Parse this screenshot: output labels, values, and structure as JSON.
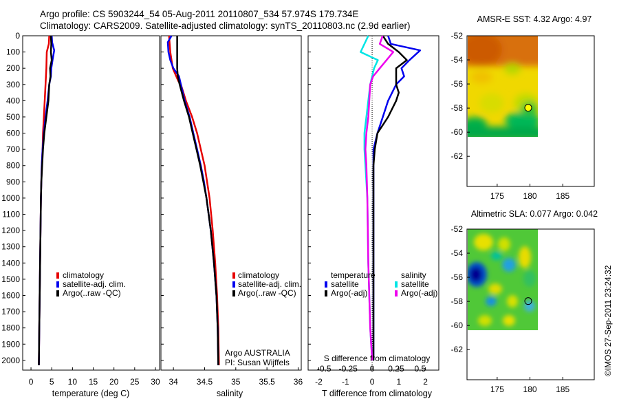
{
  "header": {
    "line1": "Argo profile: CS 5903244_54 05-Aug-2011 20110807_534 57.974S 179.734E",
    "line2": "Climatology: CARS2009. Satellite-adjusted climatology: synTS_20110803.nc (2.9d earlier)"
  },
  "watermark": "©IMOS 27-Sep-2011 23:24:32",
  "colors": {
    "climatology": "#e60000",
    "satellite": "#0000ee",
    "argo": "#000000",
    "sal_satellite": "#00e5e5",
    "sal_argo": "#ee00ee",
    "marker": "#ffff00"
  },
  "depth_axis": {
    "ticks": [
      0,
      100,
      200,
      300,
      400,
      500,
      600,
      700,
      800,
      900,
      1000,
      1100,
      1200,
      1300,
      1400,
      1500,
      1600,
      1700,
      1800,
      1900,
      2000
    ],
    "range": [
      0,
      2060
    ]
  },
  "chart_data": [
    {
      "type": "line",
      "id": "temperature",
      "xlabel": "temperature (deg C)",
      "xlim": [
        -2,
        31
      ],
      "xticks": [
        0,
        5,
        10,
        15,
        20,
        25,
        30
      ],
      "y_axis": "depth",
      "legend": [
        "climatology",
        "satellite-adj. clim.",
        "Argo(..raw -QC)"
      ],
      "series": [
        {
          "name": "climatology",
          "color": "#e60000",
          "points": [
            [
              4.4,
              0
            ],
            [
              4.3,
              50
            ],
            [
              3.8,
              100
            ],
            [
              3.7,
              200
            ],
            [
              3.5,
              300
            ],
            [
              3.3,
              400
            ],
            [
              3.1,
              500
            ],
            [
              2.9,
              600
            ],
            [
              2.8,
              700
            ],
            [
              2.6,
              800
            ],
            [
              2.5,
              900
            ],
            [
              2.4,
              1000
            ],
            [
              2.3,
              1200
            ],
            [
              2.2,
              1400
            ],
            [
              2.1,
              1600
            ],
            [
              2.0,
              1800
            ],
            [
              1.9,
              2030
            ]
          ]
        },
        {
          "name": "satellite-adj. clim.",
          "color": "#0000ee",
          "points": [
            [
              5.0,
              0
            ],
            [
              5.1,
              40
            ],
            [
              5.6,
              90
            ],
            [
              5.2,
              150
            ],
            [
              4.9,
              200
            ],
            [
              4.8,
              250
            ],
            [
              4.4,
              300
            ],
            [
              4.0,
              400
            ],
            [
              3.5,
              500
            ],
            [
              3.1,
              600
            ],
            [
              2.8,
              700
            ],
            [
              2.6,
              800
            ],
            [
              2.5,
              900
            ],
            [
              2.4,
              1000
            ],
            [
              2.3,
              1200
            ],
            [
              2.2,
              1400
            ],
            [
              2.1,
              1600
            ],
            [
              2.0,
              1800
            ],
            [
              1.9,
              2030
            ]
          ]
        },
        {
          "name": "Argo(..raw -QC)",
          "color": "#000000",
          "points": [
            [
              4.8,
              0
            ],
            [
              4.9,
              50
            ],
            [
              4.8,
              100
            ],
            [
              5.0,
              150
            ],
            [
              4.6,
              200
            ],
            [
              4.7,
              250
            ],
            [
              4.4,
              300
            ],
            [
              4.3,
              350
            ],
            [
              4.2,
              400
            ],
            [
              3.7,
              500
            ],
            [
              3.2,
              600
            ],
            [
              2.9,
              700
            ],
            [
              2.7,
              800
            ],
            [
              2.5,
              900
            ],
            [
              2.4,
              1000
            ],
            [
              2.3,
              1200
            ],
            [
              2.2,
              1400
            ],
            [
              2.1,
              1600
            ],
            [
              2.0,
              1800
            ],
            [
              1.9,
              2030
            ]
          ]
        }
      ]
    },
    {
      "type": "line",
      "id": "salinity",
      "xlabel": "salinity",
      "xlim": [
        33.8,
        36.05
      ],
      "xticks": [
        34,
        34.5,
        35,
        35.5,
        36
      ],
      "y_axis": "depth",
      "legend": [
        "climatology",
        "satellite-adj. clim.",
        "Argo(..raw -QC)"
      ],
      "annotation": [
        "Argo AUSTRALIA",
        "PI: Susan Wijffels"
      ],
      "series": [
        {
          "name": "climatology",
          "color": "#e60000",
          "points": [
            [
              33.93,
              0
            ],
            [
              33.94,
              50
            ],
            [
              33.95,
              100
            ],
            [
              33.99,
              200
            ],
            [
              34.08,
              280
            ],
            [
              34.12,
              300
            ],
            [
              34.2,
              400
            ],
            [
              34.3,
              500
            ],
            [
              34.38,
              600
            ],
            [
              34.44,
              700
            ],
            [
              34.5,
              800
            ],
            [
              34.54,
              900
            ],
            [
              34.58,
              1000
            ],
            [
              34.63,
              1200
            ],
            [
              34.67,
              1400
            ],
            [
              34.7,
              1600
            ],
            [
              34.72,
              1800
            ],
            [
              34.73,
              2030
            ]
          ]
        },
        {
          "name": "satellite-adj. clim.",
          "color": "#0000ee",
          "points": [
            [
              33.97,
              0
            ],
            [
              33.91,
              40
            ],
            [
              33.92,
              100
            ],
            [
              33.95,
              150
            ],
            [
              34.0,
              200
            ],
            [
              34.09,
              250
            ],
            [
              34.12,
              300
            ],
            [
              34.18,
              400
            ],
            [
              34.26,
              500
            ],
            [
              34.32,
              600
            ],
            [
              34.38,
              700
            ],
            [
              34.44,
              800
            ],
            [
              34.49,
              900
            ],
            [
              34.53,
              1000
            ],
            [
              34.6,
              1200
            ],
            [
              34.65,
              1400
            ],
            [
              34.69,
              1600
            ],
            [
              34.71,
              1800
            ],
            [
              34.72,
              2030
            ]
          ]
        },
        {
          "name": "Argo(..raw -QC)",
          "color": "#000000",
          "points": [
            [
              34.06,
              0
            ],
            [
              34.06,
              100
            ],
            [
              34.06,
              200
            ],
            [
              34.07,
              250
            ],
            [
              34.1,
              300
            ],
            [
              34.17,
              400
            ],
            [
              34.25,
              500
            ],
            [
              34.31,
              600
            ],
            [
              34.37,
              700
            ],
            [
              34.43,
              800
            ],
            [
              34.48,
              900
            ],
            [
              34.53,
              1000
            ],
            [
              34.6,
              1200
            ],
            [
              34.65,
              1400
            ],
            [
              34.69,
              1600
            ],
            [
              34.71,
              1800
            ],
            [
              34.72,
              2030
            ]
          ]
        }
      ]
    },
    {
      "type": "line",
      "id": "difference",
      "xlabel": "T difference from climatology",
      "xlabel_top": "S difference from climatology",
      "xlim": [
        -2.4,
        2.5
      ],
      "xticks": [
        -2,
        -1,
        0,
        1,
        2
      ],
      "xticks_top_labels": [
        "-0.5",
        "-0.25",
        "0",
        "0.25",
        "0.5"
      ],
      "y_axis": "depth",
      "legend_groups": [
        {
          "title": "temperature",
          "entries": [
            "satellite",
            "Argo(-adj)"
          ]
        },
        {
          "title": "salinity",
          "entries": [
            "satellite",
            "Argo(-adj)"
          ]
        }
      ],
      "series": [
        {
          "name": "temperature satellite",
          "color": "#0000ee",
          "points": [
            [
              0.6,
              0
            ],
            [
              0.7,
              50
            ],
            [
              1.8,
              90
            ],
            [
              1.4,
              150
            ],
            [
              1.1,
              200
            ],
            [
              1.2,
              250
            ],
            [
              0.9,
              300
            ],
            [
              0.6,
              400
            ],
            [
              0.4,
              500
            ],
            [
              0.2,
              600
            ],
            [
              0.05,
              700
            ],
            [
              0.05,
              800
            ],
            [
              0.05,
              1200
            ],
            [
              0.05,
              1600
            ],
            [
              0.05,
              2000
            ]
          ]
        },
        {
          "name": "temperature Argo(-adj)",
          "color": "#000000",
          "points": [
            [
              0.4,
              0
            ],
            [
              0.6,
              50
            ],
            [
              1.0,
              100
            ],
            [
              1.3,
              150
            ],
            [
              0.9,
              200
            ],
            [
              0.9,
              250
            ],
            [
              0.9,
              300
            ],
            [
              1.0,
              350
            ],
            [
              0.9,
              400
            ],
            [
              0.6,
              500
            ],
            [
              0.2,
              600
            ],
            [
              0.1,
              700
            ],
            [
              0.05,
              800
            ],
            [
              0.05,
              1200
            ],
            [
              0.05,
              1600
            ],
            [
              0.05,
              2000
            ]
          ]
        },
        {
          "name": "salinity satellite",
          "color": "#00e5e5",
          "points": [
            [
              -0.04,
              0
            ],
            [
              -0.12,
              100
            ],
            [
              0.06,
              150
            ],
            [
              0.02,
              200
            ],
            [
              -0.02,
              300
            ],
            [
              -0.04,
              400
            ],
            [
              -0.06,
              500
            ],
            [
              -0.08,
              600
            ],
            [
              -0.08,
              700
            ],
            [
              -0.07,
              800
            ],
            [
              -0.05,
              1000
            ],
            [
              -0.04,
              1400
            ],
            [
              -0.02,
              1800
            ],
            [
              0,
              2000
            ]
          ]
        },
        {
          "name": "salinity Argo(-adj)",
          "color": "#ee00ee",
          "points": [
            [
              0.11,
              0
            ],
            [
              0.08,
              50
            ],
            [
              0.22,
              100
            ],
            [
              0.08,
              200
            ],
            [
              0.01,
              250
            ],
            [
              -0.02,
              300
            ],
            [
              -0.03,
              400
            ],
            [
              -0.04,
              500
            ],
            [
              -0.06,
              600
            ],
            [
              -0.07,
              700
            ],
            [
              -0.06,
              800
            ],
            [
              -0.05,
              1000
            ],
            [
              -0.04,
              1400
            ],
            [
              -0.02,
              1800
            ],
            [
              0,
              2000
            ]
          ]
        }
      ]
    },
    {
      "type": "heatmap",
      "id": "sst",
      "title": "AMSR-E SST: 4.32 Argo: 4.97",
      "xlim": [
        170.4,
        189.8
      ],
      "ylim": [
        -64.5,
        -52
      ],
      "xticks": [
        175,
        180,
        185
      ],
      "yticks": [
        -52,
        -54,
        -56,
        -58,
        -60,
        -62
      ],
      "data_extent": {
        "lon": [
          170.4,
          180
        ],
        "lat": [
          -60,
          -52
        ]
      },
      "argo_position": {
        "lon": 179.734,
        "lat": -57.974
      }
    },
    {
      "type": "heatmap",
      "id": "sla",
      "title": "Altimetric SLA: 0.077 Argo: 0.042",
      "xlim": [
        170.4,
        189.8
      ],
      "ylim": [
        -64.5,
        -52
      ],
      "xticks": [
        175,
        180,
        185
      ],
      "yticks": [
        -52,
        -54,
        -56,
        -58,
        -60,
        -62
      ],
      "data_extent": {
        "lon": [
          170.4,
          180
        ],
        "lat": [
          -60,
          -52
        ]
      },
      "argo_position": {
        "lon": 179.734,
        "lat": -57.974
      }
    }
  ]
}
